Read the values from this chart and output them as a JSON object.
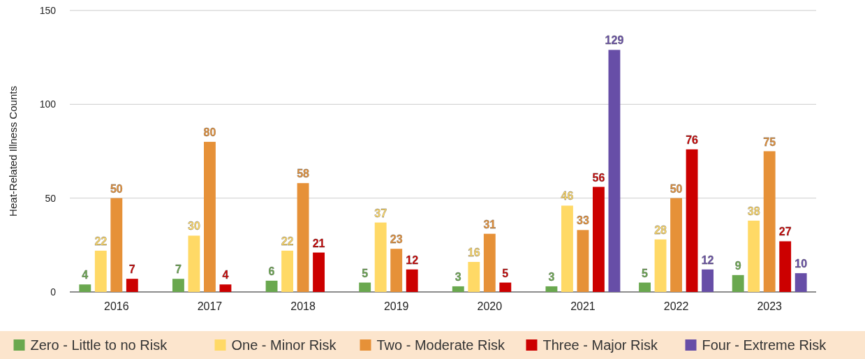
{
  "chart_data": {
    "type": "bar",
    "ylabel": "Heat-Related Illness Counts",
    "categories": [
      "2016",
      "2017",
      "2018",
      "2019",
      "2020",
      "2021",
      "2022",
      "2023"
    ],
    "series": [
      {
        "name": "Zero - Little to no Risk",
        "color": "#6aa84f",
        "values": [
          4,
          7,
          6,
          5,
          3,
          3,
          5,
          9
        ]
      },
      {
        "name": "One - Minor Risk",
        "color": "#ffd966",
        "values": [
          22,
          30,
          22,
          37,
          16,
          46,
          28,
          38
        ]
      },
      {
        "name": "Two - Moderate Risk",
        "color": "#e69138",
        "values": [
          50,
          80,
          58,
          23,
          31,
          33,
          50,
          75
        ]
      },
      {
        "name": "Three - Major Risk",
        "color": "#cc0000",
        "values": [
          7,
          4,
          21,
          12,
          5,
          56,
          76,
          27
        ]
      },
      {
        "name": "Four - Extreme Risk",
        "color": "#674ea7",
        "values": [
          null,
          null,
          null,
          null,
          null,
          129,
          12,
          10
        ]
      }
    ],
    "ylim": [
      0,
      150
    ],
    "yticks": [
      0,
      50,
      100,
      150
    ],
    "grid": "y",
    "legend": "bottom",
    "data_labels": true
  }
}
